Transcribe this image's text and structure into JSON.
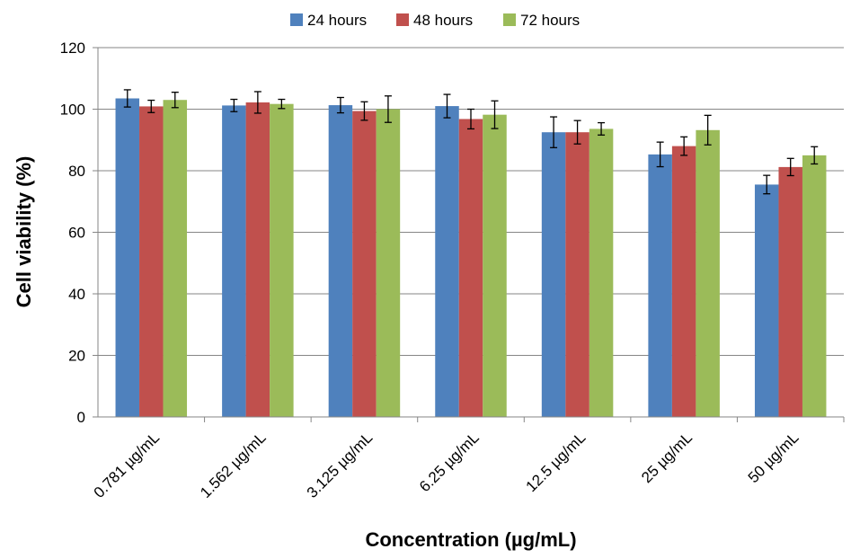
{
  "chart_data": {
    "type": "bar",
    "title": "",
    "xlabel": "Concentration (µg/mL)",
    "ylabel": "Cell viability (%)",
    "ylim": [
      0,
      120
    ],
    "yticks": [
      0,
      20,
      40,
      60,
      80,
      100,
      120
    ],
    "grid": true,
    "legend_position": "top",
    "categories": [
      "0.781 µg/mL",
      "1.562 µg/mL",
      "3.125 µg/mL",
      "6.25 µg/mL",
      "12.5 µg/mL",
      "25 µg/mL",
      "50 µg/mL"
    ],
    "series": [
      {
        "name": "24 hours",
        "color": "#4F81BD",
        "values": [
          103.5,
          101.2,
          101.3,
          101.0,
          92.5,
          85.3,
          75.5
        ],
        "errors": [
          2.8,
          2.0,
          2.5,
          3.8,
          5.0,
          4.0,
          3.0
        ]
      },
      {
        "name": "48 hours",
        "color": "#C0504D",
        "values": [
          100.9,
          102.2,
          99.4,
          96.8,
          92.5,
          88.0,
          81.2
        ],
        "errors": [
          2.0,
          3.5,
          3.0,
          3.2,
          3.8,
          3.0,
          2.8
        ]
      },
      {
        "name": "72 hours",
        "color": "#9BBB59",
        "values": [
          103.0,
          101.7,
          100.0,
          98.2,
          93.6,
          93.2,
          85.0
        ],
        "errors": [
          2.5,
          1.5,
          4.3,
          4.5,
          2.0,
          4.8,
          2.8
        ]
      }
    ]
  }
}
